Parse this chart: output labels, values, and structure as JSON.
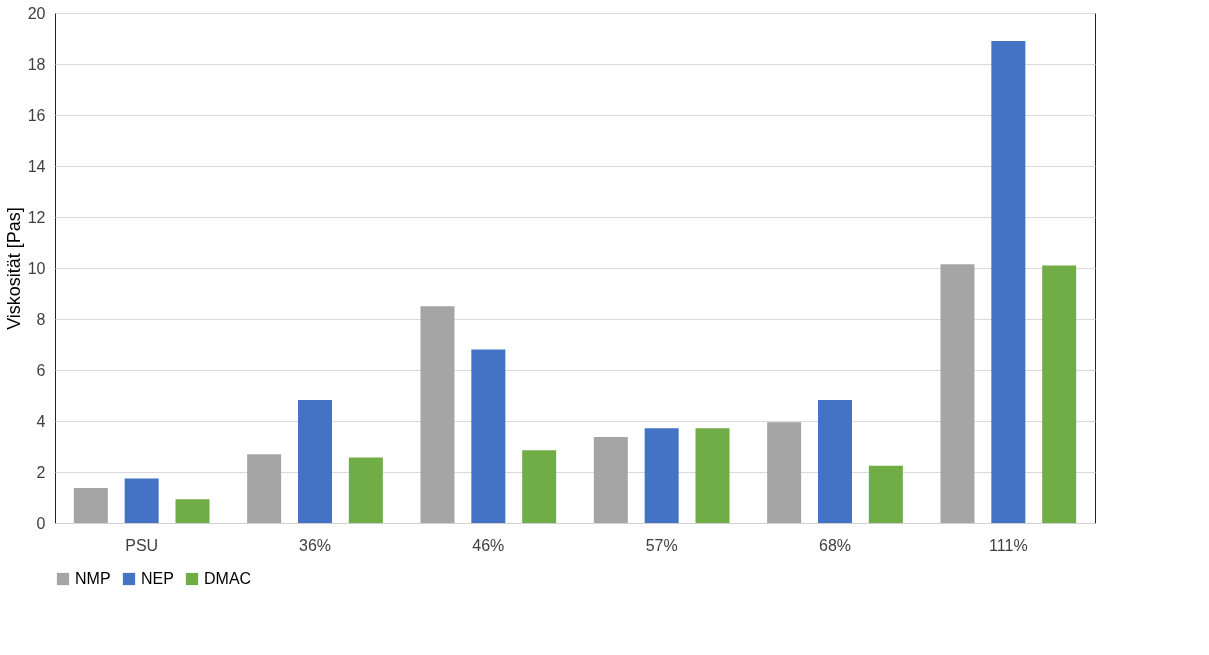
{
  "chart_data": {
    "type": "bar",
    "ylabel": "Viskosität [Pas]",
    "categories": [
      "PSU",
      "36%",
      "46%",
      "57%",
      "68%",
      "111%"
    ],
    "series": [
      {
        "name": "NMP",
        "color": "#a5a5a5",
        "values": [
          1.37,
          2.7,
          8.5,
          3.37,
          3.95,
          10.15
        ]
      },
      {
        "name": "NEP",
        "color": "#4472c4",
        "values": [
          1.75,
          4.82,
          6.8,
          3.72,
          4.82,
          18.9
        ]
      },
      {
        "name": "DMAC",
        "color": "#70ad47",
        "values": [
          0.93,
          2.57,
          2.85,
          3.72,
          2.25,
          10.1
        ]
      }
    ],
    "ylim": [
      0,
      20
    ],
    "yticks": [
      0,
      2,
      4,
      6,
      8,
      10,
      12,
      14,
      16,
      18,
      20
    ],
    "grid": "y",
    "legend": "bottom"
  }
}
